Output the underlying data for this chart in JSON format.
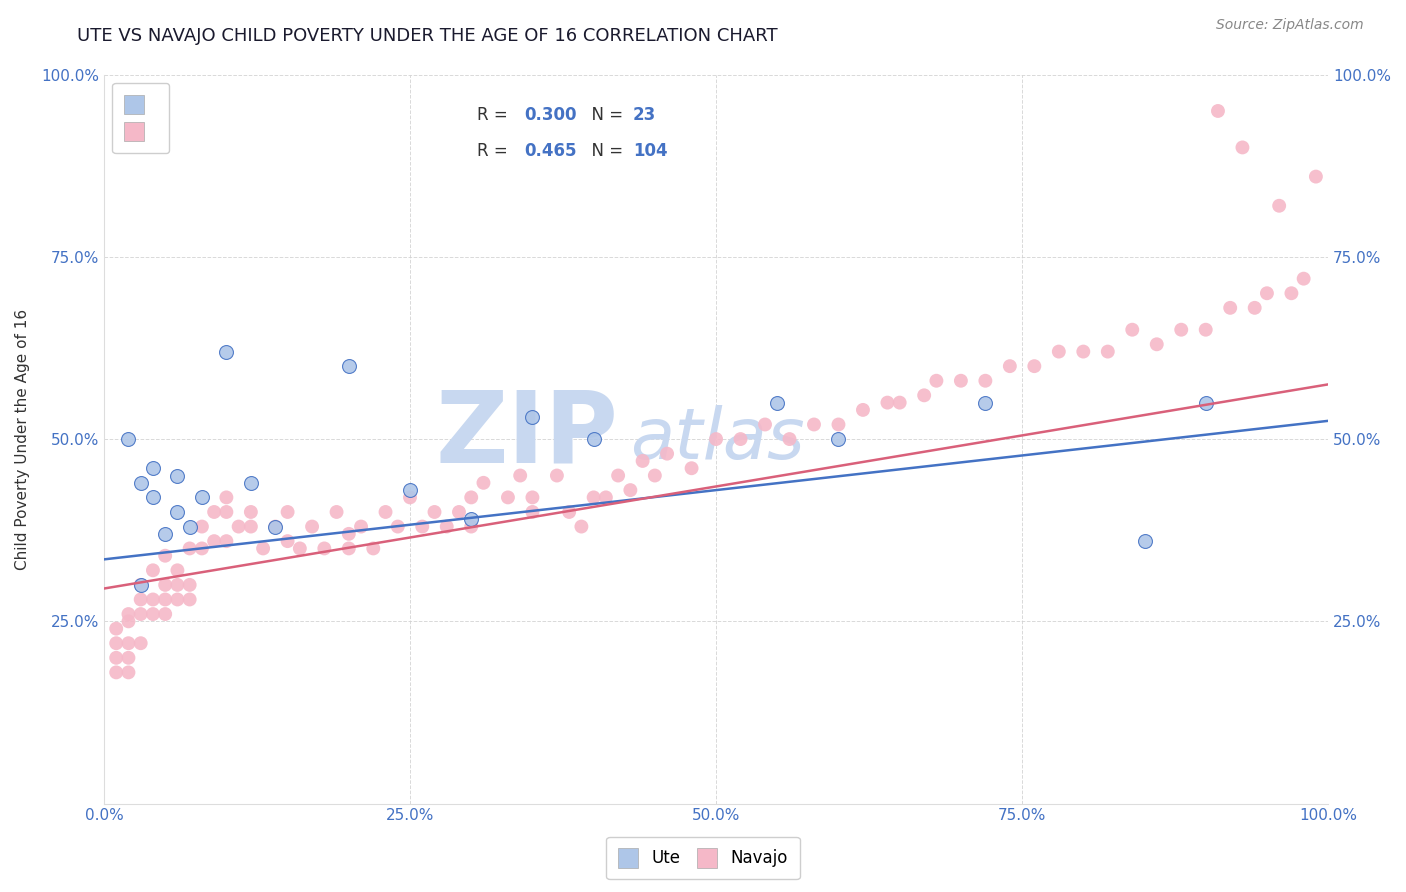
{
  "title": "UTE VS NAVAJO CHILD POVERTY UNDER THE AGE OF 16 CORRELATION CHART",
  "source": "Source: ZipAtlas.com",
  "ylabel": "Child Poverty Under the Age of 16",
  "ute_R": 0.3,
  "ute_N": 23,
  "navajo_R": 0.465,
  "navajo_N": 104,
  "ute_color": "#aec6e8",
  "navajo_color": "#f5b8c8",
  "ute_line_color": "#4472c4",
  "navajo_line_color": "#d9607a",
  "background_color": "#ffffff",
  "watermark": "ZIPatlas",
  "watermark_color": "#c8d8f0",
  "ute_x": [
    0.02,
    0.03,
    0.03,
    0.04,
    0.04,
    0.05,
    0.06,
    0.06,
    0.07,
    0.08,
    0.1,
    0.12,
    0.14,
    0.2,
    0.25,
    0.3,
    0.35,
    0.4,
    0.55,
    0.6,
    0.72,
    0.85,
    0.9
  ],
  "ute_y": [
    0.5,
    0.3,
    0.44,
    0.46,
    0.42,
    0.37,
    0.45,
    0.4,
    0.38,
    0.42,
    0.62,
    0.44,
    0.38,
    0.6,
    0.43,
    0.39,
    0.53,
    0.5,
    0.55,
    0.5,
    0.55,
    0.36,
    0.55
  ],
  "navajo_x": [
    0.01,
    0.01,
    0.01,
    0.01,
    0.02,
    0.02,
    0.02,
    0.02,
    0.02,
    0.03,
    0.03,
    0.03,
    0.03,
    0.04,
    0.04,
    0.04,
    0.05,
    0.05,
    0.05,
    0.05,
    0.06,
    0.06,
    0.06,
    0.07,
    0.07,
    0.07,
    0.08,
    0.08,
    0.09,
    0.09,
    0.1,
    0.1,
    0.1,
    0.11,
    0.12,
    0.12,
    0.13,
    0.14,
    0.15,
    0.15,
    0.16,
    0.17,
    0.18,
    0.19,
    0.2,
    0.2,
    0.21,
    0.22,
    0.23,
    0.24,
    0.25,
    0.26,
    0.27,
    0.28,
    0.29,
    0.3,
    0.3,
    0.31,
    0.33,
    0.34,
    0.35,
    0.35,
    0.37,
    0.38,
    0.39,
    0.4,
    0.41,
    0.42,
    0.43,
    0.44,
    0.45,
    0.46,
    0.48,
    0.5,
    0.52,
    0.54,
    0.56,
    0.58,
    0.6,
    0.62,
    0.64,
    0.65,
    0.67,
    0.68,
    0.7,
    0.72,
    0.74,
    0.76,
    0.78,
    0.8,
    0.82,
    0.84,
    0.86,
    0.88,
    0.9,
    0.92,
    0.94,
    0.95,
    0.97,
    0.98,
    0.93,
    0.91,
    0.96,
    0.99
  ],
  "navajo_y": [
    0.2,
    0.22,
    0.18,
    0.24,
    0.22,
    0.25,
    0.2,
    0.26,
    0.18,
    0.26,
    0.28,
    0.3,
    0.22,
    0.28,
    0.32,
    0.26,
    0.3,
    0.26,
    0.34,
    0.28,
    0.32,
    0.28,
    0.3,
    0.35,
    0.3,
    0.28,
    0.38,
    0.35,
    0.4,
    0.36,
    0.42,
    0.36,
    0.4,
    0.38,
    0.38,
    0.4,
    0.35,
    0.38,
    0.4,
    0.36,
    0.35,
    0.38,
    0.35,
    0.4,
    0.37,
    0.35,
    0.38,
    0.35,
    0.4,
    0.38,
    0.42,
    0.38,
    0.4,
    0.38,
    0.4,
    0.42,
    0.38,
    0.44,
    0.42,
    0.45,
    0.4,
    0.42,
    0.45,
    0.4,
    0.38,
    0.42,
    0.42,
    0.45,
    0.43,
    0.47,
    0.45,
    0.48,
    0.46,
    0.5,
    0.5,
    0.52,
    0.5,
    0.52,
    0.52,
    0.54,
    0.55,
    0.55,
    0.56,
    0.58,
    0.58,
    0.58,
    0.6,
    0.6,
    0.62,
    0.62,
    0.62,
    0.65,
    0.63,
    0.65,
    0.65,
    0.68,
    0.68,
    0.7,
    0.7,
    0.72,
    0.9,
    0.95,
    0.82,
    0.86
  ],
  "ute_line_x0": 0.0,
  "ute_line_y0": 0.335,
  "ute_line_x1": 1.0,
  "ute_line_y1": 0.525,
  "nav_line_x0": 0.0,
  "nav_line_y0": 0.295,
  "nav_line_x1": 1.0,
  "nav_line_y1": 0.575,
  "xlim": [
    0.0,
    1.0
  ],
  "ylim": [
    0.0,
    1.0
  ],
  "xticks": [
    0.0,
    0.25,
    0.5,
    0.75,
    1.0
  ],
  "yticks": [
    0.0,
    0.25,
    0.5,
    0.75,
    1.0
  ],
  "xticklabels": [
    "0.0%",
    "25.0%",
    "50.0%",
    "75.0%",
    "100.0%"
  ],
  "yleft_ticklabels": [
    "",
    "25.0%",
    "50.0%",
    "75.0%",
    "100.0%"
  ],
  "yright_ticklabels": [
    "",
    "25.0%",
    "50.0%",
    "75.0%",
    "100.0%"
  ],
  "grid_color": "#d0d0d0",
  "tick_color": "#4472c4",
  "legend_R_color": "#4472c4",
  "legend_N_color": "#000000"
}
